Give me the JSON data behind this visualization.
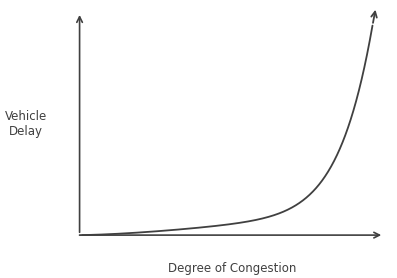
{
  "xlabel": "Degree of Congestion",
  "ylabel": "Vehicle\nDelay",
  "line_color": "#404040",
  "line_width": 1.3,
  "background_color": "#ffffff",
  "figsize": [
    3.97,
    2.78
  ],
  "dpi": 100,
  "axis_color": "#404040",
  "label_fontsize": 8.5,
  "ylabel_fontsize": 8.5
}
